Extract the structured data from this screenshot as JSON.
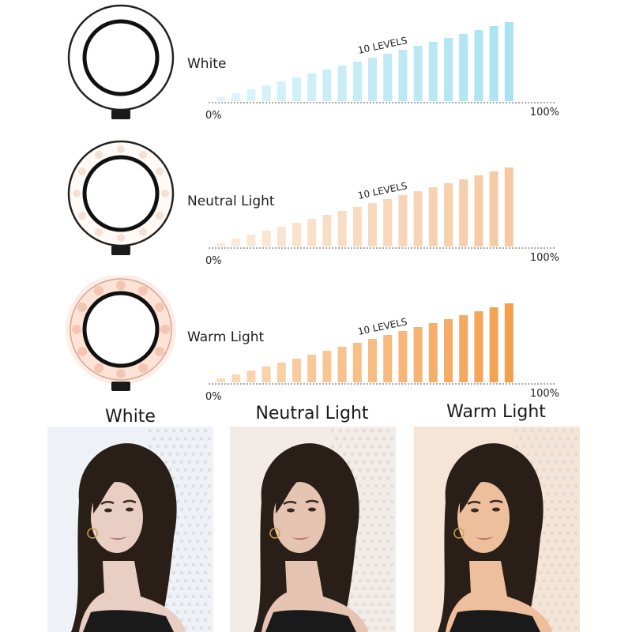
{
  "rows": [
    {
      "label": "White",
      "levels_label": "10 LEVELS",
      "min_label": "0%",
      "max_label": "100%",
      "bar_color": "#a9e3f2",
      "glow_color": "#ffffff"
    },
    {
      "label": "Neutral Light",
      "levels_label": "10 LEVELS",
      "min_label": "0%",
      "max_label": "100%",
      "bar_color": "#f6c9a2",
      "glow_color": "#fff6ee"
    },
    {
      "label": "Warm Light",
      "levels_label": "10 LEVELS",
      "min_label": "0%",
      "max_label": "100%",
      "bar_color": "#f4a04e",
      "glow_color": "#ffe4d2"
    }
  ],
  "chart_data": [
    {
      "type": "bar",
      "series": [
        {
          "values": [
            0.05,
            0.1,
            0.15,
            0.2,
            0.25,
            0.3,
            0.35,
            0.4,
            0.45,
            0.5,
            0.55,
            0.6,
            0.65,
            0.7,
            0.75,
            0.8,
            0.85,
            0.9,
            0.95,
            1.0
          ]
        }
      ],
      "xlabel_min": "0%",
      "xlabel_max": "100%",
      "annotation": "10 LEVELS",
      "color": "#a9e3f2"
    },
    {
      "type": "bar",
      "series": [
        {
          "values": [
            0.05,
            0.1,
            0.15,
            0.2,
            0.25,
            0.3,
            0.35,
            0.4,
            0.45,
            0.5,
            0.55,
            0.6,
            0.65,
            0.7,
            0.75,
            0.8,
            0.85,
            0.9,
            0.95,
            1.0
          ]
        }
      ],
      "xlabel_min": "0%",
      "xlabel_max": "100%",
      "annotation": "10 LEVELS",
      "color": "#f6c9a2"
    },
    {
      "type": "bar",
      "series": [
        {
          "values": [
            0.05,
            0.1,
            0.15,
            0.2,
            0.25,
            0.3,
            0.35,
            0.4,
            0.45,
            0.5,
            0.55,
            0.6,
            0.65,
            0.7,
            0.75,
            0.8,
            0.85,
            0.9,
            0.95,
            1.0
          ]
        }
      ],
      "xlabel_min": "0%",
      "xlabel_max": "100%",
      "annotation": "10 LEVELS",
      "color": "#f4a04e"
    }
  ],
  "photos": [
    {
      "title": "White",
      "tint": "#eef2f6"
    },
    {
      "title": "Neutral Light",
      "tint": "#f3ece6"
    },
    {
      "title": "Warm Light",
      "tint": "#f6e4d6"
    }
  ]
}
